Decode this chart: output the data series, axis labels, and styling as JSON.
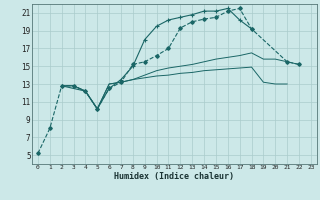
{
  "xlabel": "Humidex (Indice chaleur)",
  "bg_color": "#cce8e8",
  "grid_color": "#aacccc",
  "line_color": "#1a6666",
  "xlim": [
    -0.5,
    23.5
  ],
  "ylim": [
    4,
    22
  ],
  "xticks": [
    0,
    1,
    2,
    3,
    4,
    5,
    6,
    7,
    8,
    9,
    10,
    11,
    12,
    13,
    14,
    15,
    16,
    17,
    18,
    19,
    20,
    21,
    22,
    23
  ],
  "yticks": [
    5,
    7,
    9,
    11,
    13,
    15,
    17,
    19,
    21
  ],
  "series1_x": [
    0,
    1,
    2,
    3,
    4,
    5,
    6,
    7,
    8,
    9,
    10,
    11,
    12,
    13,
    14,
    15,
    16,
    17,
    18,
    21,
    22
  ],
  "series1_y": [
    5.2,
    8.0,
    12.8,
    12.8,
    12.2,
    10.2,
    12.5,
    13.2,
    15.2,
    15.5,
    16.2,
    17.0,
    19.3,
    20.0,
    20.3,
    20.5,
    21.2,
    21.5,
    19.2,
    15.5,
    15.2
  ],
  "series2_x": [
    2,
    4,
    5,
    6,
    7,
    8,
    9,
    10,
    11,
    12,
    13,
    14,
    15,
    16,
    17,
    18
  ],
  "series2_y": [
    12.8,
    12.2,
    10.2,
    12.5,
    13.5,
    15.0,
    18.0,
    19.5,
    20.2,
    20.5,
    20.8,
    21.2,
    21.2,
    21.5,
    20.2,
    19.2
  ],
  "series3_x": [
    2,
    3,
    4,
    5,
    6,
    7,
    8,
    9,
    10,
    11,
    12,
    13,
    14,
    15,
    16,
    17,
    18,
    19,
    20,
    21
  ],
  "series3_y": [
    12.8,
    12.8,
    12.2,
    10.2,
    13.0,
    13.2,
    13.5,
    13.7,
    13.9,
    14.0,
    14.2,
    14.3,
    14.5,
    14.6,
    14.7,
    14.8,
    14.9,
    13.2,
    13.0,
    13.0
  ],
  "series4_x": [
    2,
    3,
    4,
    5,
    6,
    7,
    8,
    9,
    10,
    11,
    12,
    13,
    14,
    15,
    16,
    17,
    18,
    19,
    20,
    21,
    22
  ],
  "series4_y": [
    12.8,
    12.8,
    12.2,
    10.2,
    13.0,
    13.2,
    13.5,
    14.0,
    14.5,
    14.8,
    15.0,
    15.2,
    15.5,
    15.8,
    16.0,
    16.2,
    16.5,
    15.8,
    15.8,
    15.5,
    15.2
  ]
}
